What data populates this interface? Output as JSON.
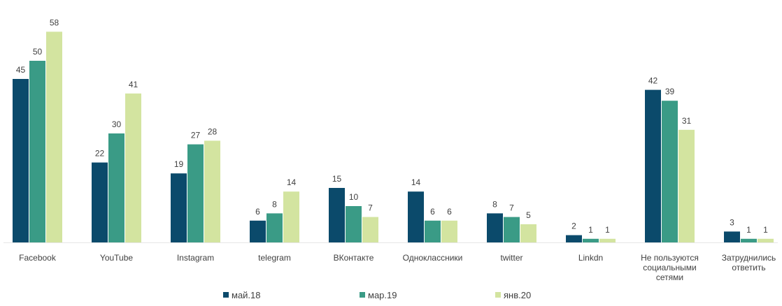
{
  "chart_data": {
    "type": "bar",
    "title": "",
    "xlabel": "",
    "ylabel": "",
    "ylim": [
      0,
      60
    ],
    "grid": false,
    "legend_position": "bottom-center",
    "categories": [
      [
        "Facebook"
      ],
      [
        "YouTube"
      ],
      [
        "Instagram"
      ],
      [
        "telegram"
      ],
      [
        "ВКонтакте"
      ],
      [
        "Одноклассники"
      ],
      [
        "twitter"
      ],
      [
        "Linkdn"
      ],
      [
        "Не пользуются",
        "социальными",
        "сетями"
      ],
      [
        "Затруднились",
        "ответить"
      ]
    ],
    "series": [
      {
        "name": "май.18",
        "color": "#0b4a6b",
        "values": [
          45,
          22,
          19,
          6,
          15,
          14,
          8,
          2,
          42,
          3
        ]
      },
      {
        "name": "мар.19",
        "color": "#3a9b86",
        "values": [
          50,
          30,
          27,
          8,
          10,
          6,
          7,
          1,
          39,
          1
        ]
      },
      {
        "name": "янв.20",
        "color": "#d3e4a0",
        "values": [
          58,
          41,
          28,
          14,
          7,
          6,
          5,
          1,
          31,
          1
        ]
      }
    ]
  }
}
